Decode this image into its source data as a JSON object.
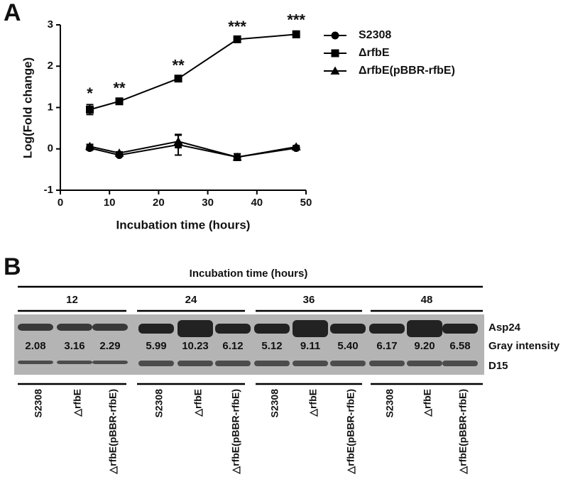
{
  "panel_labels": [
    "A",
    "B"
  ],
  "chart_data": {
    "type": "line",
    "xlabel": "Incubation time (hours)",
    "ylabel": "Log(Fold change)",
    "x": [
      6,
      12,
      24,
      36,
      48
    ],
    "xlim": [
      0,
      50
    ],
    "xticks": [
      0,
      10,
      20,
      30,
      40,
      50
    ],
    "ylim": [
      -1,
      3
    ],
    "yticks": [
      -1,
      0,
      1,
      2,
      3
    ],
    "series": [
      {
        "name": "S2308",
        "color": "#000000",
        "marker": "circle",
        "values": [
          0.02,
          -0.15,
          0.1,
          -0.2,
          0.02
        ],
        "errors": [
          0.05,
          0.03,
          0.25,
          0.08,
          0.03
        ]
      },
      {
        "name": "ΔrfbE",
        "color": "#000000",
        "marker": "square",
        "values": [
          0.95,
          1.15,
          1.7,
          2.65,
          2.77
        ],
        "errors": [
          0.12,
          0.05,
          0.05,
          0.04,
          0.08
        ]
      },
      {
        "name": "ΔrfbE(pBBR-rfbE)",
        "color": "#000000",
        "marker": "triangle",
        "values": [
          0.06,
          -0.1,
          0.18,
          -0.2,
          0.05
        ],
        "errors": [
          0.05,
          0.03,
          0.15,
          0.08,
          0.03
        ]
      }
    ],
    "significance": [
      "*",
      "**",
      "**",
      "***",
      "***"
    ]
  },
  "blot": {
    "title": "Incubation time (hours)",
    "groups": [
      "12",
      "24",
      "36",
      "48"
    ],
    "lanes": [
      "S2308",
      "△rfbE",
      "△rfbE(pBBR-rfbE)"
    ],
    "rows": [
      "Asp24",
      "Gray intensity",
      "D15"
    ],
    "intensities": [
      [
        "2.08",
        "3.16",
        "2.29"
      ],
      [
        "5.99",
        "10.23",
        "6.12"
      ],
      [
        "5.12",
        "9.11",
        "5.40"
      ],
      [
        "6.17",
        "9.20",
        "6.58"
      ]
    ]
  }
}
